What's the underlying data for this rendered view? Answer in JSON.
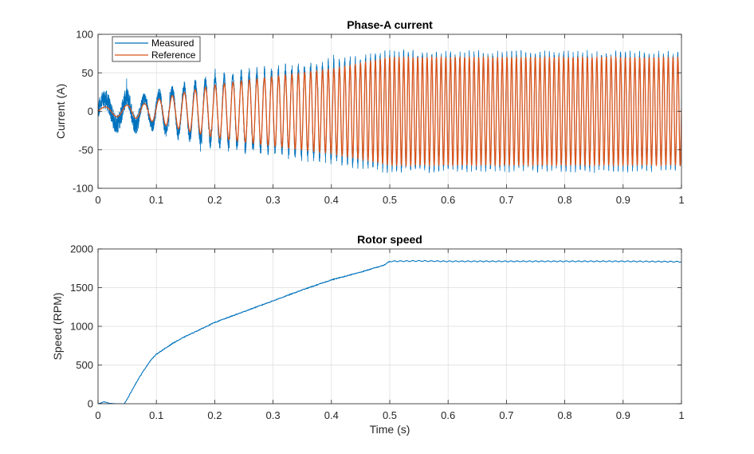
{
  "colors": {
    "measured": "#0072BD",
    "reference": "#D95319",
    "grid": "#dcdcdc",
    "axis": "#262626"
  },
  "chart_data": [
    {
      "type": "line",
      "title": "Phase-A current",
      "xlabel": "",
      "ylabel": "Current (A)",
      "xlim": [
        0,
        1
      ],
      "ylim": [
        -100,
        100
      ],
      "xticks": [
        0,
        0.1,
        0.2,
        0.3,
        0.4,
        0.5,
        0.6,
        0.7,
        0.8,
        0.9,
        1
      ],
      "xtick_labels": [
        "0",
        "0.1",
        "0.2",
        "0.3",
        "0.4",
        "0.5",
        "0.6",
        "0.7",
        "0.8",
        "0.9",
        "1"
      ],
      "yticks": [
        -100,
        -50,
        0,
        50,
        100
      ],
      "ytick_labels": [
        "-100",
        "-50",
        "0",
        "50",
        "100"
      ],
      "grid": true,
      "legend_position": "top-left",
      "series": [
        {
          "name": "Measured",
          "color": "#0072BD",
          "envelope": {
            "t": [
              0,
              0.05,
              0.08,
              0.1,
              0.15,
              0.2,
              0.25,
              0.3,
              0.35,
              0.4,
              0.45,
              0.5,
              0.6,
              0.7,
              0.8,
              0.9,
              1.0
            ],
            "amplitude": [
              15,
              18,
              16,
              22,
              32,
              42,
              48,
              52,
              57,
              62,
              68,
              74,
              72,
              72,
              72,
              72,
              72
            ]
          },
          "frequency_hz": {
            "t": [
              0,
              0.5,
              1.0
            ],
            "f": [
              20,
              125,
              122
            ]
          },
          "ripple_amplitude": 8
        },
        {
          "name": "Reference",
          "color": "#D95319",
          "envelope": {
            "t": [
              0,
              0.05,
              0.08,
              0.1,
              0.15,
              0.2,
              0.25,
              0.3,
              0.35,
              0.4,
              0.45,
              0.5,
              0.6,
              0.7,
              0.8,
              0.9,
              1.0
            ],
            "amplitude": [
              5,
              8,
              10,
              15,
              25,
              34,
              40,
              45,
              50,
              55,
              62,
              70,
              70,
              70,
              70,
              70,
              70
            ]
          },
          "frequency_hz": {
            "t": [
              0,
              0.5,
              1.0
            ],
            "f": [
              20,
              125,
              122
            ]
          }
        }
      ]
    },
    {
      "type": "line",
      "title": "Rotor speed",
      "xlabel": "Time (s)",
      "ylabel": "Speed (RPM)",
      "xlim": [
        0,
        1
      ],
      "ylim": [
        0,
        2000
      ],
      "xticks": [
        0,
        0.1,
        0.2,
        0.3,
        0.4,
        0.5,
        0.6,
        0.7,
        0.8,
        0.9,
        1
      ],
      "xtick_labels": [
        "0",
        "0.1",
        "0.2",
        "0.3",
        "0.4",
        "0.5",
        "0.6",
        "0.7",
        "0.8",
        "0.9",
        "1"
      ],
      "yticks": [
        0,
        500,
        1000,
        1500,
        2000
      ],
      "ytick_labels": [
        "0",
        "500",
        "1000",
        "1500",
        "2000"
      ],
      "grid": true,
      "series": [
        {
          "color": "#0072BD",
          "x": [
            0,
            0.005,
            0.01,
            0.015,
            0.02,
            0.03,
            0.045,
            0.05,
            0.06,
            0.07,
            0.08,
            0.09,
            0.1,
            0.12,
            0.13,
            0.15,
            0.2,
            0.25,
            0.3,
            0.35,
            0.4,
            0.45,
            0.49,
            0.5,
            0.55,
            0.6,
            0.7,
            0.8,
            0.9,
            1.0
          ],
          "y": [
            0,
            10,
            25,
            15,
            5,
            0,
            0,
            60,
            200,
            330,
            450,
            560,
            640,
            740,
            790,
            870,
            1050,
            1190,
            1330,
            1470,
            1600,
            1700,
            1790,
            1840,
            1845,
            1840,
            1840,
            1840,
            1840,
            1835
          ]
        }
      ]
    }
  ]
}
